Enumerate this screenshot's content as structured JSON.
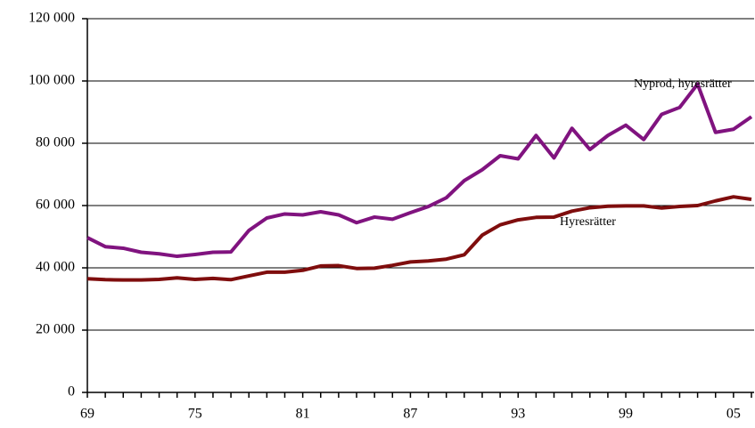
{
  "chart_data": {
    "type": "line",
    "categories": [
      "69",
      null,
      null,
      null,
      null,
      null,
      "75",
      null,
      null,
      null,
      null,
      null,
      "81",
      null,
      null,
      null,
      null,
      null,
      "87",
      null,
      null,
      null,
      null,
      null,
      "93",
      null,
      null,
      null,
      null,
      null,
      "99",
      null,
      null,
      null,
      null,
      null,
      "05",
      null
    ],
    "series": [
      {
        "name": "Nyprod, hyresrätter",
        "color": "#80137f",
        "values": [
          49700,
          46800,
          46300,
          45000,
          44500,
          43700,
          44300,
          45000,
          45100,
          52000,
          56000,
          57300,
          57000,
          58000,
          57000,
          54500,
          56300,
          55600,
          57700,
          59700,
          62500,
          68000,
          71500,
          76000,
          75000,
          82500,
          75300,
          84800,
          78000,
          82500,
          85800,
          81200,
          89300,
          91500,
          99000,
          83500,
          84500,
          88500
        ]
      },
      {
        "name": "Hyresrätter",
        "color": "#7f0d0d",
        "values": [
          36500,
          36200,
          36100,
          36100,
          36300,
          36800,
          36300,
          36600,
          36200,
          37400,
          38600,
          38600,
          39200,
          40600,
          40700,
          39800,
          39900,
          40800,
          41900,
          42200,
          42800,
          44200,
          50500,
          53800,
          55400,
          56200,
          56300,
          58200,
          59300,
          59800,
          59900,
          59900,
          59200,
          59700,
          60000,
          61500,
          62800,
          62000
        ]
      }
    ],
    "ylim": [
      0,
      120000
    ],
    "yticks": [
      0,
      {
        "value": 20000,
        "label": "20 000"
      },
      {
        "value": 40000,
        "label": "40 000"
      },
      {
        "value": 60000,
        "label": "60 000"
      },
      {
        "value": 80000,
        "label": "80 000"
      },
      {
        "value": 100000,
        "label": "100 000"
      },
      {
        "value": 120000,
        "label": "120 000"
      }
    ],
    "grid": true
  }
}
